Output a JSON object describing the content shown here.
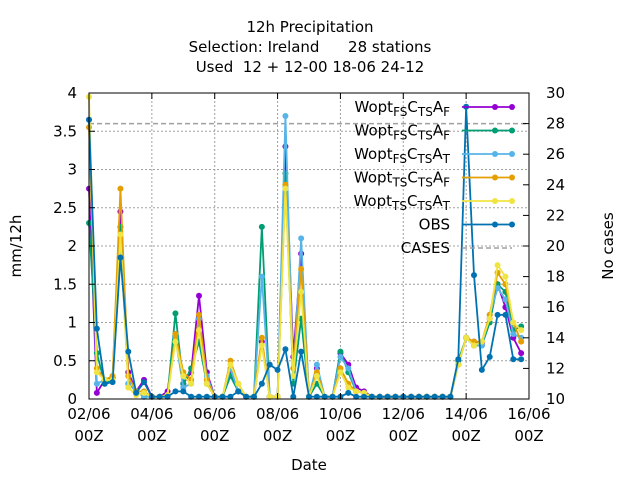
{
  "chart_data": {
    "type": "line",
    "title_lines": [
      "12h Precipitation",
      "Selection: Ireland      28 stations",
      "Used  12 + 12-00 18-06 24-12"
    ],
    "xlabel": "Date",
    "ylabel": "mm/12h",
    "y2label": "No cases",
    "xlim": [
      0,
      28
    ],
    "ylim": [
      0,
      4
    ],
    "y2lim": [
      10,
      30
    ],
    "grid": true,
    "legend_position": "top-right",
    "x_ticks": [
      {
        "x": 0,
        "line1": "02/06",
        "line2": "00Z"
      },
      {
        "x": 4,
        "line1": "04/06",
        "line2": "00Z"
      },
      {
        "x": 8,
        "line1": "06/06",
        "line2": "00Z"
      },
      {
        "x": 12,
        "line1": "08/06",
        "line2": "00Z"
      },
      {
        "x": 16,
        "line1": "10/06",
        "line2": "00Z"
      },
      {
        "x": 20,
        "line1": "12/06",
        "line2": "00Z"
      },
      {
        "x": 24,
        "line1": "14/06",
        "line2": "00Z"
      },
      {
        "x": 28,
        "line1": "16/06",
        "line2": "00Z"
      }
    ],
    "y_ticks": [
      "0",
      "0.5",
      "1",
      "1.5",
      "2",
      "2.5",
      "3",
      "3.5",
      "4"
    ],
    "y2_ticks": [
      "10",
      "12",
      "14",
      "16",
      "18",
      "20",
      "22",
      "24",
      "26",
      "28",
      "30"
    ],
    "x": [
      0,
      0.5,
      1,
      1.5,
      2,
      2.5,
      3,
      3.5,
      4,
      4.5,
      5,
      5.5,
      6,
      6.5,
      7,
      7.5,
      8,
      8.5,
      9,
      9.5,
      10,
      10.5,
      11,
      11.5,
      12,
      12.5,
      13,
      13.5,
      14,
      14.5,
      15,
      15.5,
      16,
      16.5,
      17,
      17.5,
      18,
      18.5,
      19,
      19.5,
      20,
      20.5,
      21,
      21.5,
      22,
      22.5,
      23,
      23.5,
      24,
      24.5,
      25,
      25.5,
      26,
      26.5,
      27,
      27.5
    ],
    "series": [
      {
        "name": "Wopt FS CTS AF",
        "legend": {
          "base": "Wopt",
          "parts": [
            [
              "FS",
              "sub"
            ],
            [
              "C",
              ""
            ],
            [
              "TS",
              "sub"
            ],
            [
              "A",
              ""
            ],
            [
              "F",
              "sub"
            ]
          ]
        },
        "color": "#9400d3",
        "marker": "circle",
        "values": [
          2.75,
          0.08,
          0.25,
          0.28,
          2.45,
          0.35,
          0.1,
          0.25,
          0.03,
          0.03,
          0.1,
          0.85,
          0.2,
          0.35,
          1.35,
          0.35,
          0.03,
          0.03,
          0.35,
          0.1,
          0.03,
          0.03,
          0.75,
          0.03,
          0.03,
          3.3,
          0.55,
          1.9,
          0.03,
          0.4,
          0.03,
          0.03,
          0.6,
          0.45,
          0.15,
          0.1,
          0.03,
          0.03,
          0.03,
          0.03,
          0.03,
          0.03,
          0.03,
          0.03,
          0.03,
          0.03,
          0.03,
          0.45,
          0.8,
          0.75,
          0.73,
          1.05,
          1.5,
          1.2,
          0.8,
          0.6
        ]
      },
      {
        "name": "Wopt FS CTS AF",
        "legend": {
          "base": "Wopt",
          "parts": [
            [
              "FS",
              "sub"
            ],
            [
              "C",
              ""
            ],
            [
              "TS",
              "sub"
            ],
            [
              "A",
              ""
            ],
            [
              "F",
              "sub"
            ]
          ]
        },
        "color": "#009e73",
        "marker": "circle",
        "values": [
          2.3,
          0.6,
          0.2,
          0.25,
          2.25,
          0.2,
          0.1,
          0.03,
          0.03,
          0.03,
          0.05,
          1.12,
          0.2,
          0.4,
          0.75,
          0.2,
          0.03,
          0.03,
          0.3,
          0.1,
          0.03,
          0.03,
          2.25,
          0.03,
          0.03,
          2.95,
          0.2,
          1.05,
          0.03,
          0.2,
          0.03,
          0.03,
          0.62,
          0.35,
          0.1,
          0.08,
          0.03,
          0.03,
          0.03,
          0.03,
          0.03,
          0.03,
          0.03,
          0.03,
          0.03,
          0.03,
          0.03,
          0.5,
          0.8,
          0.7,
          0.7,
          1.0,
          1.5,
          1.4,
          0.9,
          0.95
        ]
      },
      {
        "name": "Wopt FS CTS AT",
        "legend": {
          "base": "Wopt",
          "parts": [
            [
              "FS",
              "sub"
            ],
            [
              "C",
              ""
            ],
            [
              "TS",
              "sub"
            ],
            [
              "A",
              ""
            ],
            [
              "T",
              "sub"
            ]
          ]
        },
        "color": "#56b4e9",
        "marker": "circle",
        "values": [
          3.65,
          0.2,
          0.25,
          0.25,
          2.1,
          0.2,
          0.1,
          0.03,
          0.03,
          0.03,
          0.05,
          0.8,
          0.15,
          0.2,
          1.05,
          0.3,
          0.03,
          0.03,
          0.4,
          0.1,
          0.03,
          0.03,
          1.6,
          0.03,
          0.03,
          3.7,
          0.3,
          2.1,
          0.03,
          0.45,
          0.03,
          0.03,
          0.55,
          0.4,
          0.1,
          0.08,
          0.03,
          0.03,
          0.03,
          0.03,
          0.03,
          0.03,
          0.03,
          0.03,
          0.03,
          0.03,
          0.03,
          0.45,
          0.8,
          0.7,
          0.7,
          1.1,
          1.45,
          1.3,
          0.85,
          0.8
        ]
      },
      {
        "name": "Wopt TS CTS AF",
        "legend": {
          "base": "Wopt",
          "parts": [
            [
              "TS",
              "sub"
            ],
            [
              "C",
              ""
            ],
            [
              "TS",
              "sub"
            ],
            [
              "A",
              ""
            ],
            [
              "F",
              "sub"
            ]
          ]
        },
        "color": "#e69f00",
        "marker": "circle",
        "values": [
          3.55,
          0.4,
          0.25,
          0.3,
          2.75,
          0.3,
          0.1,
          0.1,
          0.03,
          0.03,
          0.05,
          0.85,
          0.35,
          0.25,
          1.1,
          0.25,
          0.03,
          0.03,
          0.5,
          0.2,
          0.03,
          0.03,
          0.8,
          0.03,
          0.03,
          2.8,
          0.4,
          1.7,
          0.03,
          0.35,
          0.03,
          0.03,
          0.4,
          0.2,
          0.1,
          0.08,
          0.03,
          0.03,
          0.03,
          0.03,
          0.03,
          0.03,
          0.03,
          0.03,
          0.03,
          0.03,
          0.03,
          0.45,
          0.8,
          0.75,
          0.75,
          1.1,
          1.65,
          1.5,
          1.0,
          0.75
        ]
      },
      {
        "name": "Wopt TS CTS AT",
        "legend": {
          "base": "Wopt",
          "parts": [
            [
              "TS",
              "sub"
            ],
            [
              "C",
              ""
            ],
            [
              "TS",
              "sub"
            ],
            [
              "A",
              ""
            ],
            [
              "T",
              "sub"
            ]
          ]
        },
        "color": "#f0e442",
        "marker": "circle",
        "values": [
          3.95,
          0.35,
          0.25,
          0.25,
          2.15,
          0.15,
          0.05,
          0.08,
          0.03,
          0.03,
          0.05,
          0.75,
          0.3,
          0.2,
          0.9,
          0.2,
          0.03,
          0.03,
          0.45,
          0.2,
          0.03,
          0.03,
          0.7,
          0.03,
          0.03,
          2.75,
          0.3,
          1.4,
          0.03,
          0.3,
          0.03,
          0.03,
          0.35,
          0.15,
          0.1,
          0.08,
          0.03,
          0.03,
          0.03,
          0.03,
          0.03,
          0.03,
          0.03,
          0.03,
          0.03,
          0.03,
          0.03,
          0.45,
          0.8,
          0.7,
          0.75,
          1.05,
          1.75,
          1.6,
          1.0,
          0.9
        ]
      },
      {
        "name": "OBS",
        "legend": {
          "base": "OBS",
          "parts": []
        },
        "color": "#0072b2",
        "marker": "circle",
        "values": [
          3.65,
          0.92,
          0.2,
          0.22,
          1.85,
          0.62,
          0.08,
          0.22,
          0.03,
          0.03,
          0.03,
          0.1,
          0.1,
          0.03,
          0.03,
          0.03,
          0.03,
          0.03,
          0.03,
          0.1,
          0.03,
          0.03,
          0.2,
          0.45,
          0.38,
          0.65,
          0.03,
          0.62,
          0.03,
          0.03,
          0.03,
          0.03,
          0.03,
          0.08,
          0.03,
          0.03,
          0.03,
          0.03,
          0.03,
          0.03,
          0.03,
          0.03,
          0.03,
          0.03,
          0.03,
          0.03,
          0.03,
          0.52,
          3.82,
          1.62,
          0.38,
          0.55,
          1.1,
          1.1,
          0.52,
          0.52
        ]
      }
    ],
    "cases": {
      "name": "CASES",
      "color": "#a0a0a0",
      "value": 28
    }
  }
}
